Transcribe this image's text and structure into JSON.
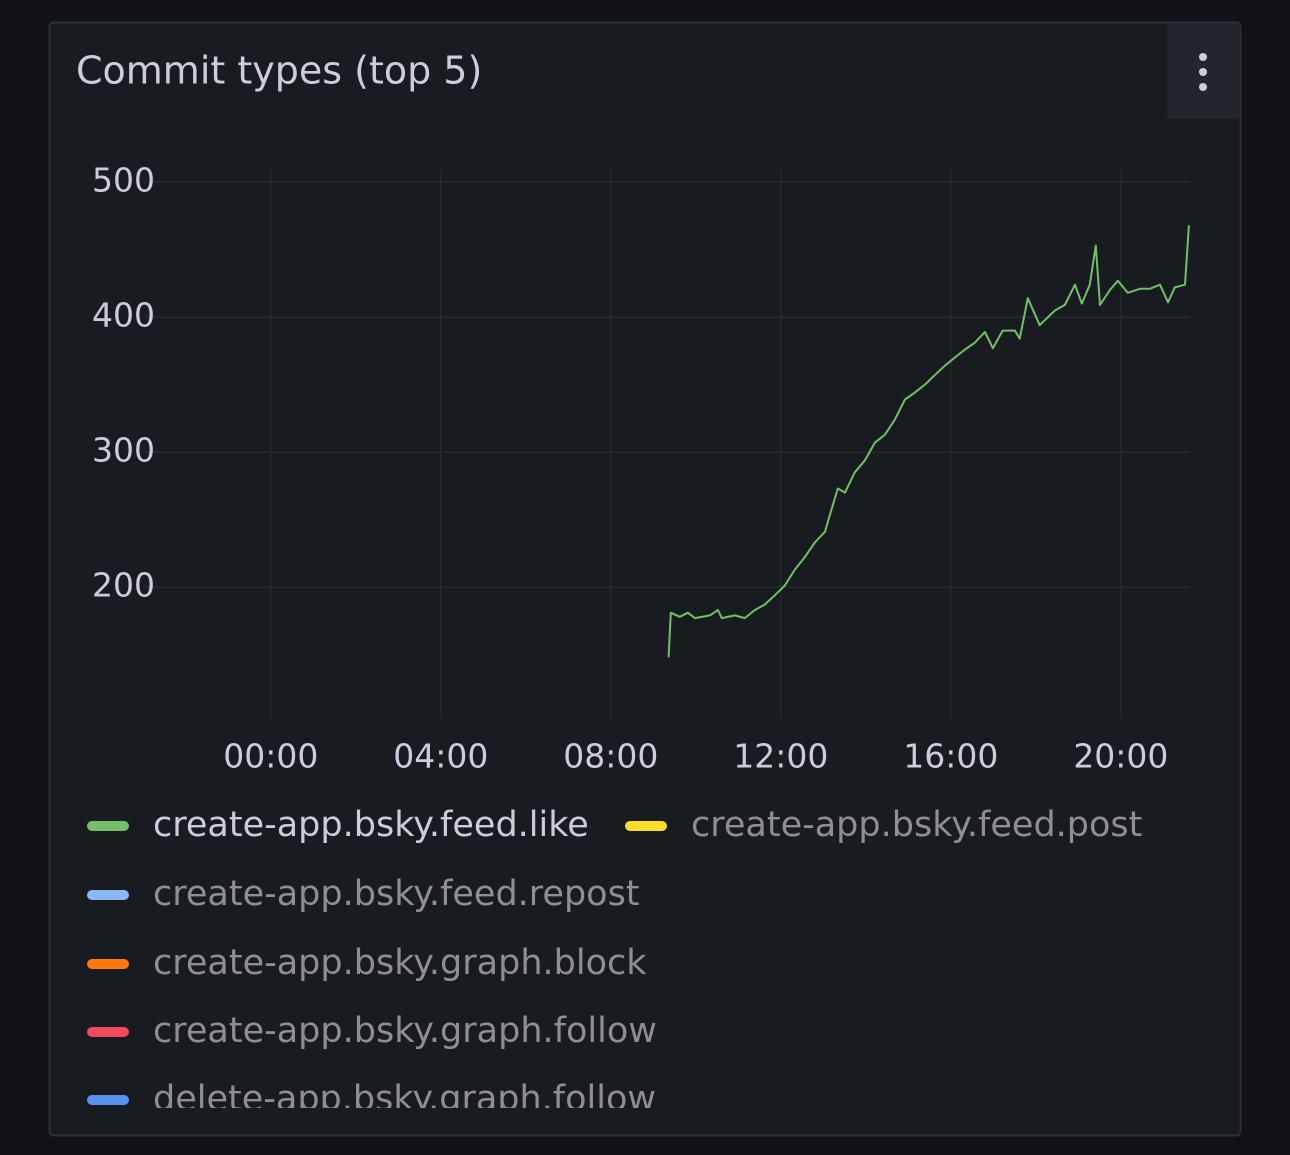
{
  "chart_data": {
    "type": "line",
    "title": "Commit types (top 5)",
    "xlim": [
      -2.96,
      21.65
    ],
    "xticks": [
      {
        "value": 0,
        "label": "00:00"
      },
      {
        "value": 4,
        "label": "04:00"
      },
      {
        "value": 8,
        "label": "08:00"
      },
      {
        "value": 12,
        "label": "12:00"
      },
      {
        "value": 16,
        "label": "16:00"
      },
      {
        "value": 20,
        "label": "20:00"
      }
    ],
    "ylim": [
      103,
      509
    ],
    "yticks": [
      200,
      300,
      400,
      500
    ],
    "grid": true,
    "legend": "bottom",
    "series": [
      {
        "name": "create-app.bsky.feed.like",
        "color": "#73bf69",
        "x": [
          9.36,
          9.41,
          9.62,
          9.81,
          9.98,
          10.33,
          10.52,
          10.61,
          10.92,
          11.15,
          11.39,
          11.62,
          11.86,
          12.09,
          12.33,
          12.56,
          12.8,
          13.04,
          13.15,
          13.34,
          13.51,
          13.74,
          13.98,
          14.21,
          14.45,
          14.68,
          14.92,
          15.15,
          15.39,
          15.62,
          15.86,
          16.09,
          16.33,
          16.56,
          16.8,
          16.99,
          17.22,
          17.51,
          17.62,
          17.81,
          18.09,
          18.45,
          18.68,
          18.92,
          19.08,
          19.27,
          19.41,
          19.51,
          19.74,
          19.93,
          20.16,
          20.45,
          20.68,
          20.92,
          21.11,
          21.27,
          21.51,
          21.6
        ],
        "values": [
          148,
          181,
          178,
          181,
          177,
          179,
          183,
          177,
          179,
          177,
          183,
          187,
          194,
          201,
          213,
          222,
          233,
          241,
          253,
          273,
          270,
          285,
          294,
          307,
          313,
          324,
          339,
          344,
          350,
          357,
          364,
          370,
          376,
          381,
          389,
          377,
          390,
          390,
          384,
          414,
          394,
          405,
          409,
          424,
          410,
          424,
          453,
          409,
          420,
          427,
          418,
          421,
          421,
          424,
          411,
          422,
          424,
          468
        ]
      },
      {
        "name": "create-app.bsky.feed.post",
        "color": "#fade2a",
        "x": [],
        "values": []
      },
      {
        "name": "create-app.bsky.feed.repost",
        "color": "#8ab8ff",
        "x": [],
        "values": []
      },
      {
        "name": "create-app.bsky.graph.block",
        "color": "#ff780a",
        "x": [],
        "values": []
      },
      {
        "name": "create-app.bsky.graph.follow",
        "color": "#f2495c",
        "x": [],
        "values": []
      },
      {
        "name": "delete-app.bsky.graph.follow",
        "color": "#5794f2",
        "x": [],
        "values": []
      }
    ]
  }
}
